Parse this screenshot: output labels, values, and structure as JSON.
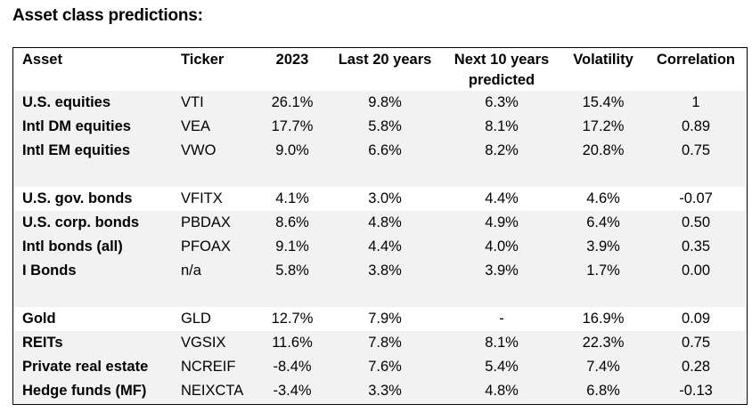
{
  "title": "Asset class predictions:",
  "columns": {
    "asset": "Asset",
    "ticker": "Ticker",
    "y2023": "2023",
    "last20": "Last 20 years",
    "next10_line1": "Next 10 years",
    "next10_line2": "predicted",
    "volatility": "Volatility",
    "correlation": "Correlation"
  },
  "rows": [
    {
      "asset": "U.S. equities",
      "ticker": "VTI",
      "y2023": "26.1%",
      "last20": "9.8%",
      "next10": "6.3%",
      "volatility": "15.4%",
      "correlation": "1"
    },
    {
      "asset": "Intl DM equities",
      "ticker": "VEA",
      "y2023": "17.7%",
      "last20": "5.8%",
      "next10": "8.1%",
      "volatility": "17.2%",
      "correlation": "0.89"
    },
    {
      "asset": "Intl EM equities",
      "ticker": "VWO",
      "y2023": "9.0%",
      "last20": "6.6%",
      "next10": "8.2%",
      "volatility": "20.8%",
      "correlation": "0.75"
    },
    {
      "asset": "U.S. gov. bonds",
      "ticker": "VFITX",
      "y2023": "4.1%",
      "last20": "3.0%",
      "next10": "4.4%",
      "volatility": "4.6%",
      "correlation": "-0.07"
    },
    {
      "asset": "U.S. corp. bonds",
      "ticker": "PBDAX",
      "y2023": "8.6%",
      "last20": "4.8%",
      "next10": "4.9%",
      "volatility": "6.4%",
      "correlation": "0.50"
    },
    {
      "asset": "Intl bonds (all)",
      "ticker": "PFOAX",
      "y2023": "9.1%",
      "last20": "4.4%",
      "next10": "4.0%",
      "volatility": "3.9%",
      "correlation": "0.35"
    },
    {
      "asset": "I Bonds",
      "ticker": "n/a",
      "y2023": "5.8%",
      "last20": "3.8%",
      "next10": "3.9%",
      "volatility": "1.7%",
      "correlation": "0.00"
    },
    {
      "asset": "Gold",
      "ticker": "GLD",
      "y2023": "12.7%",
      "last20": "7.9%",
      "next10": "-",
      "volatility": "16.9%",
      "correlation": "0.09"
    },
    {
      "asset": "REITs",
      "ticker": "VGSIX",
      "y2023": "11.6%",
      "last20": "7.8%",
      "next10": "8.1%",
      "volatility": "22.3%",
      "correlation": "0.75"
    },
    {
      "asset": "Private real estate",
      "ticker": "NCREIF",
      "y2023": "-8.4%",
      "last20": "7.6%",
      "next10": "5.4%",
      "volatility": "7.4%",
      "correlation": "0.28"
    },
    {
      "asset": "Hedge funds (MF)",
      "ticker": "NEIXCTA",
      "y2023": "-3.4%",
      "last20": "3.3%",
      "next10": "4.8%",
      "volatility": "6.8%",
      "correlation": "-0.13"
    }
  ]
}
